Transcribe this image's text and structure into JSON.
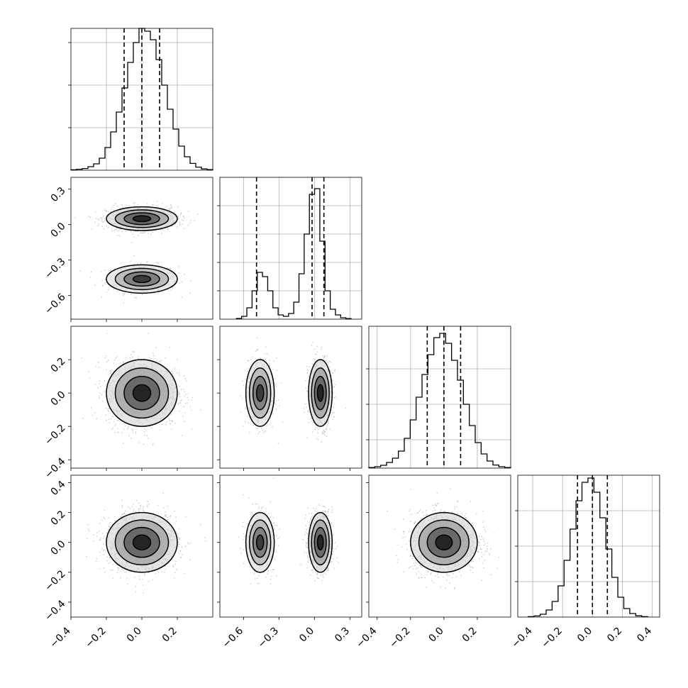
{
  "chart_data": {
    "type": "corner",
    "dimensions": 4,
    "grid": true,
    "colors": {
      "line": "#000000",
      "grid": "#b0b0b0",
      "scatter": "#9a9a9a",
      "density": "#000000"
    },
    "histograms": [
      {
        "dim": 0,
        "range": [
          -0.4,
          0.4
        ],
        "bin_values": [
          0.003,
          0.007,
          0.012,
          0.025,
          0.045,
          0.085,
          0.16,
          0.27,
          0.41,
          0.58,
          0.76,
          0.9,
          1.0,
          0.98,
          0.92,
          0.78,
          0.6,
          0.43,
          0.29,
          0.17,
          0.095,
          0.048,
          0.022,
          0.009,
          0.004
        ],
        "quantiles": [
          -0.1,
          0.0,
          0.1
        ],
        "y_ticks": [
          0.3,
          0.6,
          0.9
        ]
      },
      {
        "dim": 1,
        "range": [
          -0.8,
          0.4
        ],
        "bin_values": [
          0.005,
          0.02,
          0.08,
          0.2,
          0.33,
          0.3,
          0.2,
          0.08,
          0.03,
          0.02,
          0.04,
          0.12,
          0.32,
          0.6,
          0.88,
          0.92,
          0.55,
          0.2,
          0.07,
          0.03,
          0.01,
          0.004
        ],
        "bin_range": [
          -0.66,
          0.31
        ],
        "quantiles": [
          -0.49,
          -0.02,
          0.08
        ],
        "y_ticks": [
          0.2,
          0.4,
          0.6,
          0.8
        ]
      },
      {
        "dim": 2,
        "range": [
          -0.45,
          0.4
        ],
        "bin_values": [
          0.004,
          0.01,
          0.02,
          0.04,
          0.07,
          0.12,
          0.21,
          0.34,
          0.5,
          0.66,
          0.8,
          0.92,
          0.95,
          0.88,
          0.76,
          0.62,
          0.45,
          0.3,
          0.18,
          0.1,
          0.05,
          0.022,
          0.01,
          0.004
        ],
        "bin_range": [
          -0.45,
          0.4
        ],
        "quantiles": [
          -0.1,
          0.0,
          0.1
        ],
        "y_ticks": [
          0.2,
          0.45,
          0.7
        ]
      },
      {
        "dim": 3,
        "range": [
          -0.5,
          0.45
        ],
        "bin_values": [
          0.003,
          0.008,
          0.02,
          0.05,
          0.11,
          0.22,
          0.4,
          0.62,
          0.82,
          0.95,
          0.98,
          0.88,
          0.7,
          0.48,
          0.28,
          0.14,
          0.06,
          0.025,
          0.009,
          0.003
        ],
        "bin_range": [
          -0.43,
          0.37
        ],
        "quantiles": [
          -0.1,
          0.0,
          0.1
        ],
        "y_ticks": [
          0.25,
          0.5,
          0.75
        ]
      }
    ],
    "axes": [
      {
        "dim": 0,
        "range": [
          -0.4,
          0.4
        ],
        "ticks": [
          -0.4,
          -0.2,
          0.0,
          0.2
        ],
        "tick_labels": [
          "−0.4",
          "−0.2",
          "0.0",
          "0.2"
        ]
      },
      {
        "dim": 1,
        "range": [
          -0.8,
          0.4
        ],
        "ticks": [
          -0.6,
          -0.3,
          0.0,
          0.3
        ],
        "tick_labels": [
          "−0.6",
          "−0.3",
          "0.0",
          "0.3"
        ]
      },
      {
        "dim": 2,
        "range": [
          -0.45,
          0.4
        ],
        "ticks": [
          -0.4,
          -0.2,
          0.0,
          0.2
        ],
        "tick_labels": [
          "−0.4",
          "−0.2",
          "0.0",
          "0.2"
        ]
      },
      {
        "dim": 3,
        "range": [
          -0.5,
          0.45
        ],
        "ticks": [
          -0.4,
          -0.2,
          0.0,
          0.2,
          0.4
        ],
        "tick_labels": [
          "−0.4",
          "−0.2",
          "0.0",
          "0.2",
          "0.4"
        ]
      }
    ],
    "modes": {
      "dim0": [
        {
          "mean": 0.0,
          "sd": 0.1,
          "weight": 1.0
        }
      ],
      "dim1": [
        {
          "mean": -0.46,
          "sd": 0.06,
          "weight": 0.35
        },
        {
          "mean": 0.05,
          "sd": 0.05,
          "weight": 0.65
        }
      ],
      "dim2": [
        {
          "mean": 0.0,
          "sd": 0.1,
          "weight": 1.0
        }
      ],
      "dim3": [
        {
          "mean": 0.0,
          "sd": 0.1,
          "weight": 1.0
        }
      ]
    },
    "contour_levels_sigma": [
      0.5,
      1.0,
      1.5,
      2.0
    ]
  }
}
